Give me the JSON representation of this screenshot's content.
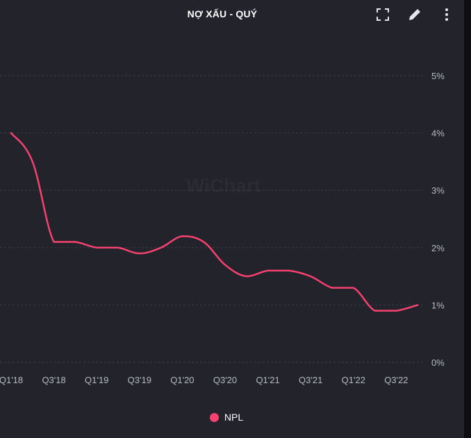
{
  "header": {
    "title": "NỢ XẤU - QUÝ",
    "icons": [
      "fullscreen-icon",
      "pencil-icon",
      "more-vertical-icon"
    ]
  },
  "watermark": "WiChart",
  "colors": {
    "series": "#f7426f",
    "grid": "#3b3d48",
    "axis_text": "#b7bac3",
    "background": "#22232b"
  },
  "chart_data": {
    "type": "line",
    "title": "NỢ XẤU - QUÝ",
    "categories": [
      "Q1'18",
      "Q2'18",
      "Q3'18",
      "Q4'18",
      "Q1'19",
      "Q2'19",
      "Q3'19",
      "Q4'19",
      "Q1'20",
      "Q2'20",
      "Q3'20",
      "Q4'20",
      "Q1'21",
      "Q2'21",
      "Q3'21",
      "Q4'21",
      "Q1'22",
      "Q2'22",
      "Q3'22",
      "Q4'22"
    ],
    "tick_labels": [
      "Q1'18",
      "Q3'18",
      "Q1'19",
      "Q3'19",
      "Q1'20",
      "Q3'20",
      "Q1'21",
      "Q3'21",
      "Q1'22",
      "Q3'22"
    ],
    "series": [
      {
        "name": "NPL",
        "values": [
          4.0,
          3.5,
          2.1,
          2.1,
          2.0,
          2.0,
          1.9,
          2.0,
          2.2,
          2.1,
          1.7,
          1.5,
          1.6,
          1.6,
          1.5,
          1.3,
          1.3,
          0.9,
          0.9,
          1.0
        ]
      }
    ],
    "y_ticks": [
      "0%",
      "1%",
      "2%",
      "3%",
      "4%",
      "5%"
    ],
    "ylim": [
      0,
      5
    ],
    "y_axis_position": "right",
    "grid": true,
    "grid_style": "dashed horizontal",
    "legend_position": "bottom-center"
  }
}
